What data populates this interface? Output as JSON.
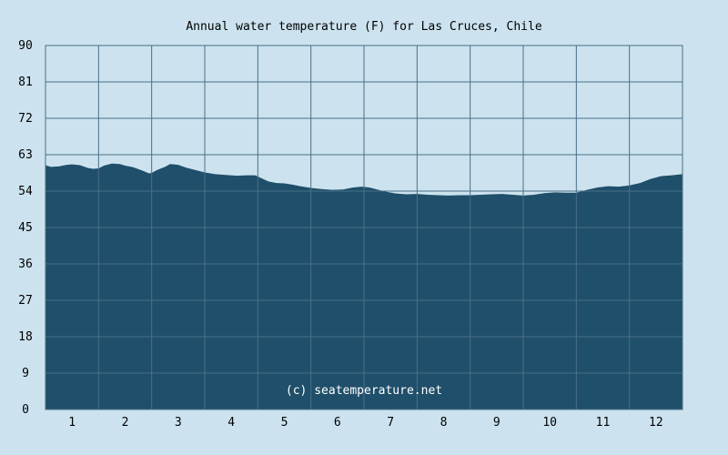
{
  "chart_data": {
    "type": "area",
    "title": "Annual water temperature (F) for Las Cruces, Chile",
    "xlabel": "",
    "ylabel": "",
    "ylim": [
      0,
      90
    ],
    "yticks": [
      0,
      9,
      18,
      27,
      36,
      45,
      54,
      63,
      72,
      81,
      90
    ],
    "xticks": [
      "1",
      "2",
      "3",
      "4",
      "5",
      "6",
      "7",
      "8",
      "9",
      "10",
      "11",
      "12"
    ],
    "xlim": [
      0.5,
      12.5
    ],
    "grid": true,
    "legend": "none",
    "fill_color": "#1f4f6a",
    "grid_color": "#4a6f86",
    "background": "#cce3ef",
    "watermark": "(c) seatemperature.net",
    "series": [
      {
        "x": [
          0.5,
          0.6,
          0.75,
          0.9,
          1.0,
          1.15,
          1.3,
          1.4,
          1.5,
          1.6,
          1.75,
          1.9,
          2.0,
          2.15,
          2.3,
          2.45,
          2.5,
          2.6,
          2.75,
          2.85,
          3.0,
          3.15,
          3.3,
          3.5,
          3.7,
          3.9,
          4.1,
          4.3,
          4.45,
          4.55,
          4.7,
          4.85,
          5.0,
          5.15,
          5.3,
          5.5,
          5.7,
          5.9,
          6.1,
          6.3,
          6.45,
          6.6,
          6.75,
          6.9,
          7.1,
          7.3,
          7.5,
          7.7,
          7.9,
          8.1,
          8.3,
          8.5,
          8.7,
          8.9,
          9.1,
          9.3,
          9.5,
          9.7,
          9.9,
          10.1,
          10.3,
          10.5,
          10.7,
          10.9,
          11.1,
          11.3,
          11.5,
          11.7,
          11.9,
          12.1,
          12.3,
          12.5
        ],
        "y": [
          60.4,
          60.0,
          60.1,
          60.5,
          60.6,
          60.4,
          59.7,
          59.5,
          59.6,
          60.3,
          60.8,
          60.7,
          60.3,
          59.9,
          59.2,
          58.4,
          58.5,
          59.2,
          60.0,
          60.7,
          60.5,
          59.8,
          59.3,
          58.6,
          58.2,
          58.0,
          57.8,
          57.9,
          57.9,
          57.3,
          56.4,
          56.0,
          55.9,
          55.6,
          55.2,
          54.8,
          54.5,
          54.3,
          54.4,
          54.9,
          55.1,
          54.9,
          54.4,
          53.9,
          53.4,
          53.2,
          53.3,
          53.1,
          53.0,
          52.9,
          53.0,
          53.0,
          53.1,
          53.2,
          53.3,
          53.1,
          52.9,
          53.1,
          53.5,
          53.7,
          53.6,
          53.6,
          54.3,
          54.9,
          55.2,
          55.1,
          55.4,
          56.0,
          57.0,
          57.7,
          57.9,
          58.2
        ]
      }
    ]
  }
}
